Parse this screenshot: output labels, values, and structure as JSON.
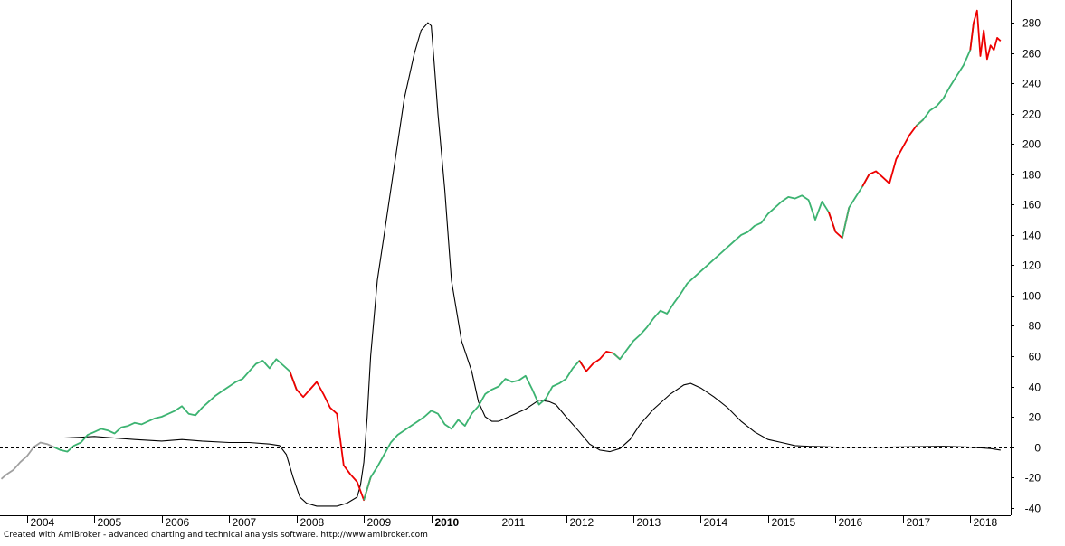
{
  "footer": "Created with AmiBroker - advanced charting and technical analysis software. http://www.amibroker.com",
  "chart_data": {
    "type": "line",
    "xlim": [
      2003.6,
      2018.6
    ],
    "ylim": [
      -45,
      295
    ],
    "y_ticks": [
      -40,
      -20,
      0,
      20,
      40,
      60,
      80,
      100,
      120,
      140,
      160,
      180,
      200,
      220,
      240,
      260,
      280
    ],
    "x_ticks": [
      {
        "label": "2004",
        "x": 2004.0,
        "bold": false
      },
      {
        "label": "2005",
        "x": 2005.0,
        "bold": false
      },
      {
        "label": "2006",
        "x": 2006.0,
        "bold": false
      },
      {
        "label": "2007",
        "x": 2007.0,
        "bold": false
      },
      {
        "label": "2008",
        "x": 2008.0,
        "bold": false
      },
      {
        "label": "2009",
        "x": 2009.0,
        "bold": false
      },
      {
        "label": "2010",
        "x": 2010.0,
        "bold": true
      },
      {
        "label": "2011",
        "x": 2011.0,
        "bold": false
      },
      {
        "label": "2012",
        "x": 2012.0,
        "bold": false
      },
      {
        "label": "2013",
        "x": 2013.0,
        "bold": false
      },
      {
        "label": "2014",
        "x": 2014.0,
        "bold": false
      },
      {
        "label": "2015",
        "x": 2015.0,
        "bold": false
      },
      {
        "label": "2016",
        "x": 2016.0,
        "bold": false
      },
      {
        "label": "2017",
        "x": 2017.0,
        "bold": false
      },
      {
        "label": "2018",
        "x": 2018.0,
        "bold": false
      }
    ],
    "reference_line": {
      "y": 0,
      "style": "dashed",
      "color": "#000000"
    },
    "grid": false,
    "colors": {
      "up": "#3cb371",
      "down": "#ee0000",
      "warmup": "#a0a0a0",
      "oscillator": "#000000"
    },
    "series": [
      {
        "kind": "price",
        "points": [
          [
            2003.62,
            -21
          ],
          [
            2003.7,
            -18
          ],
          [
            2003.8,
            -15
          ],
          [
            2003.9,
            -10
          ],
          [
            2004.0,
            -6
          ],
          [
            2004.1,
            0
          ],
          [
            2004.2,
            3
          ],
          [
            2004.3,
            2
          ],
          [
            2004.4,
            0
          ],
          [
            2004.5,
            -2
          ],
          [
            2004.6,
            -3
          ],
          [
            2004.7,
            1
          ],
          [
            2004.8,
            3
          ],
          [
            2004.9,
            8
          ],
          [
            2005.0,
            10
          ],
          [
            2005.1,
            12
          ],
          [
            2005.2,
            11
          ],
          [
            2005.3,
            9
          ],
          [
            2005.4,
            13
          ],
          [
            2005.5,
            14
          ],
          [
            2005.6,
            16
          ],
          [
            2005.7,
            15
          ],
          [
            2005.8,
            17
          ],
          [
            2005.9,
            19
          ],
          [
            2006.0,
            20
          ],
          [
            2006.1,
            22
          ],
          [
            2006.2,
            24
          ],
          [
            2006.3,
            27
          ],
          [
            2006.4,
            22
          ],
          [
            2006.5,
            21
          ],
          [
            2006.6,
            26
          ],
          [
            2006.7,
            30
          ],
          [
            2006.8,
            34
          ],
          [
            2006.9,
            37
          ],
          [
            2007.0,
            40
          ],
          [
            2007.1,
            43
          ],
          [
            2007.2,
            45
          ],
          [
            2007.3,
            50
          ],
          [
            2007.4,
            55
          ],
          [
            2007.5,
            57
          ],
          [
            2007.6,
            52
          ],
          [
            2007.7,
            58
          ],
          [
            2007.8,
            54
          ],
          [
            2007.9,
            50
          ],
          [
            2008.0,
            38
          ],
          [
            2008.1,
            33
          ],
          [
            2008.2,
            38
          ],
          [
            2008.3,
            43
          ],
          [
            2008.4,
            35
          ],
          [
            2008.5,
            26
          ],
          [
            2008.6,
            22
          ],
          [
            2008.7,
            -12
          ],
          [
            2008.8,
            -18
          ],
          [
            2008.9,
            -23
          ],
          [
            2009.0,
            -35
          ],
          [
            2009.1,
            -20
          ],
          [
            2009.2,
            -13
          ],
          [
            2009.3,
            -5
          ],
          [
            2009.4,
            3
          ],
          [
            2009.5,
            8
          ],
          [
            2009.6,
            11
          ],
          [
            2009.7,
            14
          ],
          [
            2009.8,
            17
          ],
          [
            2009.9,
            20
          ],
          [
            2010.0,
            24
          ],
          [
            2010.1,
            22
          ],
          [
            2010.2,
            15
          ],
          [
            2010.3,
            12
          ],
          [
            2010.4,
            18
          ],
          [
            2010.5,
            14
          ],
          [
            2010.6,
            22
          ],
          [
            2010.7,
            27
          ],
          [
            2010.8,
            35
          ],
          [
            2010.9,
            38
          ],
          [
            2011.0,
            40
          ],
          [
            2011.1,
            45
          ],
          [
            2011.2,
            43
          ],
          [
            2011.3,
            44
          ],
          [
            2011.4,
            47
          ],
          [
            2011.5,
            38
          ],
          [
            2011.6,
            28
          ],
          [
            2011.7,
            32
          ],
          [
            2011.8,
            40
          ],
          [
            2011.9,
            42
          ],
          [
            2012.0,
            45
          ],
          [
            2012.1,
            52
          ],
          [
            2012.2,
            57
          ],
          [
            2012.3,
            50
          ],
          [
            2012.4,
            55
          ],
          [
            2012.5,
            58
          ],
          [
            2012.6,
            63
          ],
          [
            2012.7,
            62
          ],
          [
            2012.8,
            58
          ],
          [
            2012.9,
            64
          ],
          [
            2013.0,
            70
          ],
          [
            2013.1,
            74
          ],
          [
            2013.2,
            79
          ],
          [
            2013.3,
            85
          ],
          [
            2013.4,
            90
          ],
          [
            2013.5,
            88
          ],
          [
            2013.6,
            95
          ],
          [
            2013.7,
            101
          ],
          [
            2013.8,
            108
          ],
          [
            2013.9,
            112
          ],
          [
            2014.0,
            116
          ],
          [
            2014.1,
            120
          ],
          [
            2014.2,
            124
          ],
          [
            2014.3,
            128
          ],
          [
            2014.4,
            132
          ],
          [
            2014.5,
            136
          ],
          [
            2014.6,
            140
          ],
          [
            2014.7,
            142
          ],
          [
            2014.8,
            146
          ],
          [
            2014.9,
            148
          ],
          [
            2015.0,
            154
          ],
          [
            2015.1,
            158
          ],
          [
            2015.2,
            162
          ],
          [
            2015.3,
            165
          ],
          [
            2015.4,
            164
          ],
          [
            2015.5,
            166
          ],
          [
            2015.6,
            163
          ],
          [
            2015.7,
            150
          ],
          [
            2015.8,
            162
          ],
          [
            2015.9,
            155
          ],
          [
            2016.0,
            142
          ],
          [
            2016.1,
            138
          ],
          [
            2016.2,
            158
          ],
          [
            2016.3,
            165
          ],
          [
            2016.4,
            172
          ],
          [
            2016.5,
            180
          ],
          [
            2016.6,
            182
          ],
          [
            2016.7,
            178
          ],
          [
            2016.8,
            174
          ],
          [
            2016.9,
            190
          ],
          [
            2017.0,
            198
          ],
          [
            2017.1,
            206
          ],
          [
            2017.2,
            212
          ],
          [
            2017.3,
            216
          ],
          [
            2017.4,
            222
          ],
          [
            2017.5,
            225
          ],
          [
            2017.6,
            230
          ],
          [
            2017.7,
            238
          ],
          [
            2017.8,
            245
          ],
          [
            2017.9,
            252
          ],
          [
            2018.0,
            262
          ],
          [
            2018.05,
            280
          ],
          [
            2018.1,
            288
          ],
          [
            2018.15,
            258
          ],
          [
            2018.2,
            275
          ],
          [
            2018.25,
            256
          ],
          [
            2018.3,
            265
          ],
          [
            2018.35,
            262
          ],
          [
            2018.4,
            270
          ],
          [
            2018.45,
            268
          ]
        ],
        "color_segments": [
          {
            "from": 2003.6,
            "to": 2004.45,
            "color": "warmup"
          },
          {
            "from": 2004.45,
            "to": 2007.95,
            "color": "up"
          },
          {
            "from": 2007.95,
            "to": 2009.05,
            "color": "down"
          },
          {
            "from": 2009.05,
            "to": 2012.25,
            "color": "up"
          },
          {
            "from": 2012.25,
            "to": 2012.75,
            "color": "down"
          },
          {
            "from": 2012.75,
            "to": 2015.95,
            "color": "up"
          },
          {
            "from": 2015.95,
            "to": 2016.15,
            "color": "down"
          },
          {
            "from": 2016.15,
            "to": 2016.45,
            "color": "up"
          },
          {
            "from": 2016.45,
            "to": 2017.25,
            "color": "down"
          },
          {
            "from": 2017.25,
            "to": 2018.0,
            "color": "up"
          },
          {
            "from": 2018.0,
            "to": 2018.5,
            "color": "down"
          }
        ]
      },
      {
        "kind": "oscillator",
        "points": [
          [
            2004.55,
            6
          ],
          [
            2004.8,
            6.5
          ],
          [
            2005.0,
            7
          ],
          [
            2005.3,
            6
          ],
          [
            2005.6,
            5
          ],
          [
            2006.0,
            4
          ],
          [
            2006.3,
            5
          ],
          [
            2006.6,
            4
          ],
          [
            2007.0,
            3
          ],
          [
            2007.3,
            3
          ],
          [
            2007.6,
            2
          ],
          [
            2007.75,
            1
          ],
          [
            2007.85,
            -5
          ],
          [
            2007.95,
            -20
          ],
          [
            2008.05,
            -33
          ],
          [
            2008.15,
            -37
          ],
          [
            2008.3,
            -39
          ],
          [
            2008.6,
            -39
          ],
          [
            2008.75,
            -37
          ],
          [
            2008.9,
            -33
          ],
          [
            2008.95,
            -25
          ],
          [
            2009.0,
            -10
          ],
          [
            2009.05,
            20
          ],
          [
            2009.1,
            60
          ],
          [
            2009.2,
            110
          ],
          [
            2009.3,
            140
          ],
          [
            2009.45,
            185
          ],
          [
            2009.6,
            230
          ],
          [
            2009.75,
            260
          ],
          [
            2009.85,
            275
          ],
          [
            2009.95,
            280
          ],
          [
            2010.0,
            278
          ],
          [
            2010.05,
            250
          ],
          [
            2010.1,
            220
          ],
          [
            2010.2,
            170
          ],
          [
            2010.3,
            110
          ],
          [
            2010.45,
            70
          ],
          [
            2010.6,
            50
          ],
          [
            2010.7,
            30
          ],
          [
            2010.8,
            20
          ],
          [
            2010.9,
            17
          ],
          [
            2011.0,
            17
          ],
          [
            2011.2,
            21
          ],
          [
            2011.4,
            25
          ],
          [
            2011.5,
            28
          ],
          [
            2011.6,
            31
          ],
          [
            2011.75,
            30
          ],
          [
            2011.85,
            28
          ],
          [
            2012.0,
            20
          ],
          [
            2012.2,
            10
          ],
          [
            2012.35,
            2
          ],
          [
            2012.5,
            -2
          ],
          [
            2012.65,
            -3
          ],
          [
            2012.8,
            -1
          ],
          [
            2012.95,
            5
          ],
          [
            2013.1,
            15
          ],
          [
            2013.3,
            25
          ],
          [
            2013.55,
            35
          ],
          [
            2013.75,
            41
          ],
          [
            2013.85,
            42
          ],
          [
            2014.0,
            39
          ],
          [
            2014.2,
            33
          ],
          [
            2014.4,
            26
          ],
          [
            2014.6,
            17
          ],
          [
            2014.8,
            10
          ],
          [
            2015.0,
            5
          ],
          [
            2015.2,
            3
          ],
          [
            2015.4,
            1
          ],
          [
            2015.6,
            0.5
          ],
          [
            2015.8,
            0.3
          ],
          [
            2016.0,
            0
          ],
          [
            2016.4,
            0
          ],
          [
            2016.8,
            0
          ],
          [
            2017.2,
            0.3
          ],
          [
            2017.6,
            0.5
          ],
          [
            2018.0,
            0
          ],
          [
            2018.3,
            -1
          ],
          [
            2018.45,
            -2
          ]
        ]
      }
    ]
  }
}
